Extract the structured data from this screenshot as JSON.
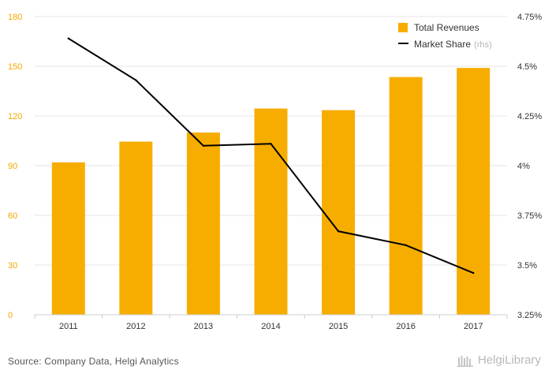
{
  "chart_data": {
    "type": "bar",
    "categories": [
      "2011",
      "2012",
      "2013",
      "2014",
      "2015",
      "2016",
      "2017"
    ],
    "series": [
      {
        "name": "Total Revenues",
        "kind": "bar",
        "axis": "left",
        "color": "#f7ad00",
        "values": [
          92,
          104.5,
          110,
          124.5,
          123.5,
          143.5,
          149
        ]
      },
      {
        "name": "Market Share",
        "name_suffix": "(rhs)",
        "kind": "line",
        "axis": "right",
        "color": "#000000",
        "values": [
          4.64,
          4.43,
          4.1,
          4.11,
          3.67,
          3.6,
          3.46
        ]
      }
    ],
    "y_left": {
      "min": 0,
      "max": 180,
      "ticks": [
        0,
        30,
        60,
        90,
        120,
        150,
        180
      ],
      "tick_labels": [
        "0",
        "30",
        "60",
        "90",
        "120",
        "150",
        "180"
      ]
    },
    "y_right": {
      "min": 3.25,
      "max": 4.75,
      "ticks": [
        3.25,
        3.5,
        3.75,
        4,
        4.25,
        4.5,
        4.75
      ],
      "tick_labels": [
        "3.25%",
        "3.5%",
        "3.75%",
        "4%",
        "4.25%",
        "4.5%",
        "4.75%"
      ]
    },
    "grid": true,
    "legend_position": "top-right"
  },
  "footer": {
    "source": "Source: Company Data, Helgi Analytics",
    "brand": "HelgiLibrary"
  },
  "colors": {
    "bar": "#f7ad00",
    "line": "#000000",
    "left_ticks": "#f2a900",
    "grid": "#e6e6e6"
  }
}
